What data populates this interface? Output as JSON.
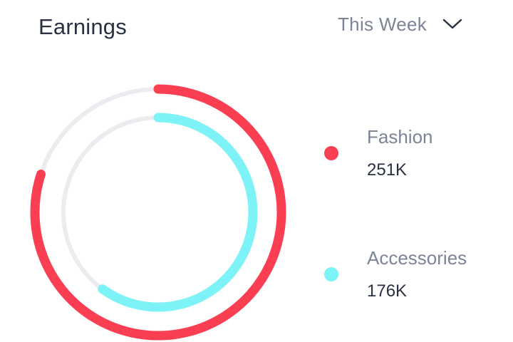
{
  "header": {
    "title": "Earnings",
    "period_selector": {
      "selected": "This Week",
      "icon": "chevron-down-icon"
    }
  },
  "colors": {
    "fashion": "#fb3f53",
    "accessories": "#7ef3f7",
    "track": "#ececf0",
    "title_text": "#2a3142",
    "muted_text": "#7d8497"
  },
  "chart_data": {
    "type": "radial-bar",
    "series": [
      {
        "name": "Fashion",
        "label": "251K",
        "fraction": 0.8
      },
      {
        "name": "Accessories",
        "label": "176K",
        "fraction": 0.6
      }
    ]
  },
  "legend": [
    {
      "name": "Fashion",
      "value": "251K"
    },
    {
      "name": "Accessories",
      "value": "176K"
    }
  ]
}
